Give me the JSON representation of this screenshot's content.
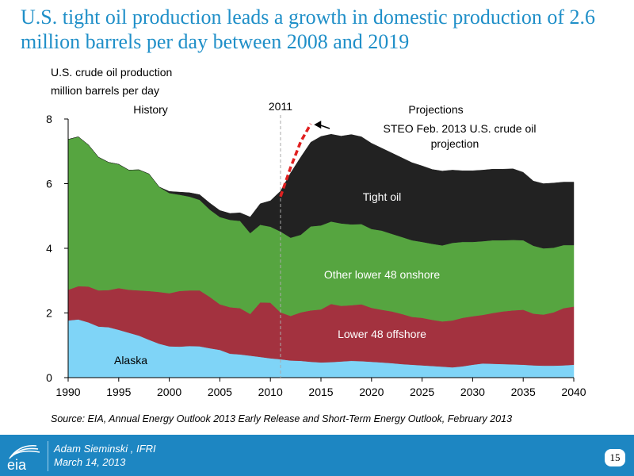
{
  "slide": {
    "title": "U.S. tight oil production leads a growth in domestic production of 2.6 million barrels per day between 2008 and 2019",
    "source": "Source:  EIA, Annual Energy Outlook 2013 Early Release and Short-Term Energy Outlook, February 2013",
    "author": "Adam Sieminski , IFRI",
    "date": "March 14, 2013",
    "page_number": "15",
    "logo_text": "eia"
  },
  "chart_data": {
    "type": "area",
    "stacked": true,
    "ylabel_line1": "U.S. crude oil production",
    "ylabel_line2": "million barrels per day",
    "xlim": [
      1990,
      2040
    ],
    "ylim": [
      0,
      8
    ],
    "x_ticks": [
      1990,
      1995,
      2000,
      2005,
      2010,
      2015,
      2020,
      2025,
      2030,
      2035,
      2040
    ],
    "y_ticks": [
      0,
      2,
      4,
      6,
      8
    ],
    "grid": false,
    "x": [
      1990,
      1991,
      1992,
      1993,
      1994,
      1995,
      1996,
      1997,
      1998,
      1999,
      2000,
      2001,
      2002,
      2003,
      2004,
      2005,
      2006,
      2007,
      2008,
      2009,
      2010,
      2011,
      2012,
      2013,
      2014,
      2015,
      2016,
      2017,
      2018,
      2019,
      2020,
      2021,
      2022,
      2023,
      2024,
      2025,
      2026,
      2027,
      2028,
      2029,
      2030,
      2031,
      2032,
      2033,
      2034,
      2035,
      2036,
      2037,
      2038,
      2039,
      2040
    ],
    "series": [
      {
        "name": "Alaska",
        "color": "#7fd4f7",
        "values": [
          1.77,
          1.8,
          1.71,
          1.58,
          1.56,
          1.48,
          1.39,
          1.3,
          1.17,
          1.05,
          0.97,
          0.96,
          0.98,
          0.97,
          0.91,
          0.86,
          0.74,
          0.72,
          0.68,
          0.64,
          0.6,
          0.57,
          0.53,
          0.52,
          0.49,
          0.47,
          0.48,
          0.5,
          0.52,
          0.51,
          0.49,
          0.47,
          0.45,
          0.42,
          0.4,
          0.38,
          0.36,
          0.34,
          0.32,
          0.35,
          0.4,
          0.44,
          0.43,
          0.42,
          0.41,
          0.4,
          0.38,
          0.37,
          0.37,
          0.38,
          0.4
        ]
      },
      {
        "name": "Lower 48 offshore",
        "color": "#a3323f",
        "values": [
          0.95,
          1.03,
          1.11,
          1.12,
          1.15,
          1.29,
          1.33,
          1.4,
          1.51,
          1.6,
          1.64,
          1.72,
          1.72,
          1.73,
          1.59,
          1.41,
          1.44,
          1.43,
          1.29,
          1.69,
          1.72,
          1.45,
          1.38,
          1.5,
          1.59,
          1.64,
          1.8,
          1.72,
          1.72,
          1.76,
          1.67,
          1.63,
          1.6,
          1.55,
          1.48,
          1.47,
          1.43,
          1.4,
          1.45,
          1.5,
          1.5,
          1.5,
          1.57,
          1.63,
          1.67,
          1.7,
          1.6,
          1.58,
          1.65,
          1.77,
          1.8
        ]
      },
      {
        "name": "Other lower 48 onshore",
        "color": "#56a540",
        "values": [
          4.65,
          4.62,
          4.38,
          4.12,
          3.95,
          3.83,
          3.7,
          3.73,
          3.62,
          3.25,
          3.1,
          2.98,
          2.9,
          2.8,
          2.7,
          2.7,
          2.7,
          2.7,
          2.5,
          2.4,
          2.35,
          2.5,
          2.42,
          2.4,
          2.6,
          2.6,
          2.55,
          2.55,
          2.5,
          2.48,
          2.44,
          2.45,
          2.4,
          2.38,
          2.37,
          2.35,
          2.35,
          2.35,
          2.4,
          2.35,
          2.3,
          2.28,
          2.25,
          2.2,
          2.18,
          2.15,
          2.1,
          2.05,
          2.0,
          1.95,
          1.9
        ]
      },
      {
        "name": "Tight oil",
        "color": "#222222",
        "values": [
          0,
          0,
          0,
          0,
          0,
          0,
          0,
          0,
          0,
          0,
          0.05,
          0.08,
          0.12,
          0.16,
          0.2,
          0.2,
          0.2,
          0.25,
          0.5,
          0.65,
          0.8,
          1.25,
          2.0,
          2.4,
          2.6,
          2.75,
          2.7,
          2.7,
          2.78,
          2.7,
          2.65,
          2.55,
          2.5,
          2.45,
          2.4,
          2.35,
          2.3,
          2.3,
          2.25,
          2.2,
          2.2,
          2.2,
          2.2,
          2.2,
          2.2,
          2.1,
          2.0,
          2.0,
          2.0,
          1.95,
          1.95
        ]
      }
    ],
    "steo_projection": {
      "label_line1": "STEO Feb. 2013 U.S. crude oil",
      "label_line2": "projection",
      "color": "#e02020",
      "x": [
        2011,
        2012,
        2013,
        2014
      ],
      "y": [
        5.6,
        6.5,
        7.3,
        7.85
      ]
    },
    "divider_year": 2011,
    "annotations": {
      "history": "History",
      "projections": "Projections",
      "divider_label": "2011"
    },
    "area_labels": [
      "Tight oil",
      "Other lower 48 onshore",
      "Lower 48 offshore",
      "Alaska"
    ]
  }
}
